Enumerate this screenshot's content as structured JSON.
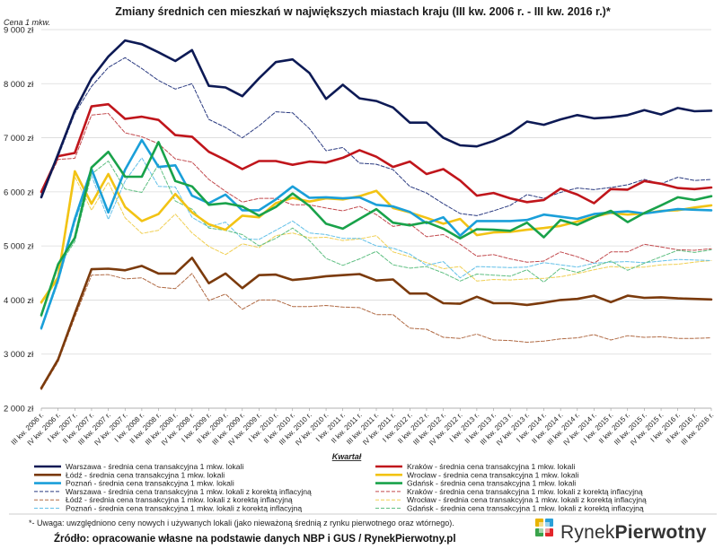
{
  "chart_data": {
    "type": "line",
    "title": "Zmiany średnich cen mieszkań w największych miastach kraju (III kw. 2006 r. - III kw. 2016 r.)*",
    "ylabel": "Cena 1 mkw.",
    "xlabel": "Kwartał",
    "ylim": [
      2000,
      9000
    ],
    "yticks": [
      2000,
      3000,
      4000,
      5000,
      6000,
      7000,
      8000,
      9000
    ],
    "ytick_labels": [
      "2 000 zł",
      "3 000 zł",
      "4 000 zł",
      "5 000 zł",
      "6 000 zł",
      "7 000 zł",
      "8 000 zł",
      "9 000 zł"
    ],
    "grid": true,
    "legend_position": "bottom",
    "categories": [
      "III kw. 2006 r.",
      "IV kw. 2006 r.",
      "I kw. 2007 r.",
      "II kw. 2007 r.",
      "III kw. 2007 r.",
      "IV kw. 2007 r.",
      "I kw. 2008 r.",
      "II kw. 2008 r.",
      "III kw. 2008 r.",
      "IV kw. 2008 r.",
      "I kw. 2009 r.",
      "II kw. 2009 r.",
      "III kw. 2009 r.",
      "IV kw. 2009 r.",
      "I kw. 2010 r.",
      "II kw. 2010 r.",
      "III kw. 2010 r.",
      "IV kw. 2010 r.",
      "I kw. 2011 r.",
      "II kw. 2011 r.",
      "III kw. 2011 r.",
      "IV kw. 2011 r.",
      "I kw. 2012 r.",
      "II kw. 2012 r.",
      "III kw. 2012 r.",
      "IV kw. 2012 r.",
      "I kw. 2013 r.",
      "II kw. 2013 r.",
      "III kw. 2013 r.",
      "IV kw. 2013 r.",
      "I kw. 2014 r.",
      "II kw. 2014 r.",
      "III kw. 2014 r.",
      "IV kw. 2014 r.",
      "I kw. 2015 r.",
      "II kw. 2015 r.",
      "III kw. 2015 r.",
      "IV kw. 2015 r.",
      "I kw. 2016 r.",
      "II kw. 2016 r.",
      "III kw. 2016 r."
    ],
    "series": [
      {
        "name": "Warszawa - średnia cena transakcyjna 1 mkw. lokali",
        "color": "#0d1a55",
        "width": 2.6,
        "dash": "solid",
        "values": [
          5900,
          6700,
          7500,
          8100,
          8500,
          8800,
          8730,
          8580,
          8420,
          8620,
          7960,
          7930,
          7770,
          8100,
          8400,
          8450,
          8200,
          7720,
          7980,
          7730,
          7680,
          7560,
          7280,
          7280,
          7000,
          6860,
          6840,
          6940,
          7080,
          7300,
          7240,
          7340,
          7420,
          7360,
          7380,
          7420,
          7510,
          7430,
          7550,
          7490,
          7500
        ]
      },
      {
        "name": "Kraków - średnia cena transakcyjna 1 mkw. lokali",
        "color": "#c0151b",
        "width": 2.6,
        "dash": "solid",
        "values": [
          6000,
          6660,
          6720,
          7580,
          7620,
          7350,
          7390,
          7330,
          7050,
          7020,
          6740,
          6590,
          6420,
          6570,
          6570,
          6500,
          6560,
          6540,
          6630,
          6770,
          6650,
          6460,
          6560,
          6330,
          6420,
          6210,
          5930,
          5980,
          5880,
          5810,
          5850,
          6060,
          5950,
          5790,
          6050,
          6040,
          6200,
          6150,
          6070,
          6050,
          6080
        ]
      },
      {
        "name": "Łódź - średnia cena transakcyjna 1 mkw. lokali",
        "color": "#7b3a0c",
        "width": 2.6,
        "dash": "solid",
        "values": [
          2370,
          2900,
          3750,
          4570,
          4580,
          4550,
          4630,
          4490,
          4490,
          4780,
          4310,
          4490,
          4220,
          4460,
          4470,
          4370,
          4400,
          4440,
          4460,
          4480,
          4360,
          4380,
          4120,
          4120,
          3940,
          3930,
          4060,
          3940,
          3940,
          3910,
          3950,
          4000,
          4020,
          4080,
          3960,
          4080,
          4040,
          4050,
          4030,
          4020,
          4010
        ]
      },
      {
        "name": "Wrocław - średnia cena transakcyjna 1 mkw. lokali",
        "color": "#f2c314",
        "width": 2.6,
        "dash": "solid",
        "values": [
          3960,
          4420,
          6380,
          5780,
          6330,
          5720,
          5460,
          5590,
          5960,
          5620,
          5400,
          5300,
          5560,
          5530,
          5790,
          5890,
          5820,
          5880,
          5860,
          5920,
          6020,
          5700,
          5620,
          5520,
          5410,
          5500,
          5200,
          5250,
          5260,
          5300,
          5330,
          5370,
          5450,
          5540,
          5610,
          5580,
          5600,
          5650,
          5660,
          5710,
          5750
        ]
      },
      {
        "name": "Poznań - średnia cena transakcyjna 1 mkw. lokali",
        "color": "#1a9fd9",
        "width": 2.6,
        "dash": "solid",
        "values": [
          3480,
          4380,
          5500,
          6420,
          5620,
          6410,
          6960,
          6460,
          6490,
          5930,
          5790,
          5950,
          5660,
          5660,
          5860,
          6100,
          5890,
          5900,
          5880,
          5900,
          5760,
          5730,
          5630,
          5420,
          5530,
          5190,
          5460,
          5460,
          5460,
          5480,
          5580,
          5540,
          5500,
          5590,
          5620,
          5640,
          5600,
          5640,
          5680,
          5670,
          5660
        ]
      },
      {
        "name": "Gdańsk - średnia cena transakcyjna 1 mkw. lokali",
        "color": "#19a24a",
        "width": 2.6,
        "dash": "solid",
        "values": [
          3720,
          4660,
          5150,
          6450,
          6740,
          6280,
          6280,
          6920,
          6200,
          6100,
          5760,
          5790,
          5730,
          5560,
          5720,
          5970,
          5740,
          5410,
          5320,
          5500,
          5680,
          5430,
          5380,
          5440,
          5320,
          5140,
          5310,
          5300,
          5280,
          5430,
          5160,
          5480,
          5390,
          5530,
          5650,
          5440,
          5610,
          5750,
          5900,
          5850,
          5920
        ]
      },
      {
        "name": "Warszawa - średnia cena transakcyjna 1 mkw. lokali z korektą inflacyjną",
        "color": "#2a3a80",
        "width": 1,
        "dash": "4,2",
        "values": [
          5960,
          6650,
          7450,
          7950,
          8300,
          8480,
          8280,
          8060,
          7900,
          8000,
          7340,
          7190,
          7000,
          7220,
          7480,
          7460,
          7170,
          6760,
          6820,
          6530,
          6510,
          6410,
          6100,
          5980,
          5780,
          5600,
          5560,
          5650,
          5750,
          5950,
          5880,
          5990,
          6070,
          6040,
          6080,
          6130,
          6230,
          6150,
          6270,
          6210,
          6230
        ]
      },
      {
        "name": "Kraków - średnia cena transakcyjna 1 mkw. lokali z korektą inflacyjną",
        "color": "#c24a4e",
        "width": 1,
        "dash": "4,2",
        "values": [
          5950,
          6600,
          6620,
          7420,
          7450,
          7090,
          7020,
          6890,
          6610,
          6550,
          6230,
          6010,
          5810,
          5880,
          5880,
          5760,
          5760,
          5700,
          5650,
          5730,
          5580,
          5360,
          5410,
          5170,
          5210,
          5030,
          4810,
          4840,
          4760,
          4700,
          4720,
          4890,
          4800,
          4680,
          4890,
          4890,
          5030,
          4980,
          4930,
          4920,
          4950
        ]
      },
      {
        "name": "Łódź - średnia cena transakcyjna 1 mkw. lokali z korektą inflacyjną",
        "color": "#b06a44",
        "width": 1,
        "dash": "4,2",
        "values": [
          2340,
          2860,
          3680,
          4460,
          4470,
          4390,
          4410,
          4240,
          4210,
          4490,
          3990,
          4110,
          3830,
          4000,
          4000,
          3880,
          3880,
          3900,
          3870,
          3860,
          3730,
          3730,
          3480,
          3460,
          3310,
          3290,
          3370,
          3260,
          3250,
          3220,
          3240,
          3280,
          3300,
          3360,
          3260,
          3340,
          3310,
          3320,
          3290,
          3290,
          3300
        ]
      },
      {
        "name": "Wrocław - średnia cena transakcyjna 1 mkw. lokali z korektą inflacyjną",
        "color": "#f0cf52",
        "width": 1,
        "dash": "4,2",
        "values": [
          3930,
          4380,
          6280,
          5660,
          6180,
          5520,
          5230,
          5290,
          5590,
          5240,
          4990,
          4840,
          5040,
          4970,
          5190,
          5240,
          5150,
          5160,
          5100,
          5130,
          5190,
          4890,
          4800,
          4690,
          4580,
          4620,
          4350,
          4380,
          4370,
          4390,
          4400,
          4430,
          4490,
          4560,
          4620,
          4600,
          4610,
          4650,
          4660,
          4700,
          4730
        ]
      },
      {
        "name": "Poznań - średnia cena transakcyjna 1 mkw. lokali z korektą inflacyjną",
        "color": "#62c0e8",
        "width": 1,
        "dash": "4,2",
        "values": [
          3450,
          4320,
          5430,
          6300,
          5490,
          6200,
          6630,
          6100,
          6090,
          5530,
          5350,
          5440,
          5130,
          5120,
          5290,
          5460,
          5240,
          5210,
          5140,
          5140,
          5000,
          4960,
          4850,
          4640,
          4710,
          4410,
          4620,
          4610,
          4600,
          4610,
          4690,
          4650,
          4610,
          4680,
          4700,
          4710,
          4690,
          4720,
          4750,
          4740,
          4730
        ]
      },
      {
        "name": "Gdańsk - średnia cena transakcyjna 1 mkw. lokali z korektą inflacyjną",
        "color": "#5fbf82",
        "width": 1,
        "dash": "4,2",
        "values": [
          3690,
          4610,
          5080,
          6330,
          6570,
          6050,
          5990,
          6510,
          5830,
          5680,
          5330,
          5290,
          5210,
          5000,
          5140,
          5330,
          5100,
          4770,
          4640,
          4760,
          4900,
          4650,
          4590,
          4620,
          4500,
          4350,
          4480,
          4460,
          4440,
          4560,
          4330,
          4590,
          4510,
          4620,
          4720,
          4550,
          4680,
          4800,
          4920,
          4880,
          4930
        ]
      }
    ],
    "legend_order": [
      0,
      1,
      2,
      3,
      4,
      5,
      6,
      7,
      8,
      9,
      10,
      11
    ]
  },
  "footer": {
    "note": "*- Uwaga: uwzględniono ceny nowych i używanych lokali (jako nieważoną średnią z rynku pierwotnego oraz wtórnego).",
    "source": "Źródło: opracowanie własne na podstawie danych NBP i GUS / RynekPierwotny.pl",
    "brand_part1": "Rynek",
    "brand_part2": "Pierwotny",
    "brand_colors": [
      "#e8b400",
      "#2aa0d8",
      "#3aa34b",
      "#e3262b"
    ]
  }
}
